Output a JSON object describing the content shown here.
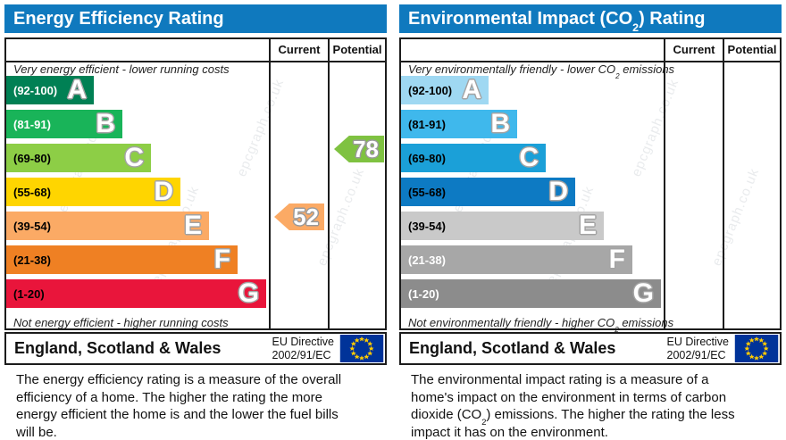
{
  "watermark": "epcgraph.co.uk",
  "flag": {
    "background": "#003399",
    "star": "#ffcc00"
  },
  "charts": [
    {
      "title": {
        "pre": "Energy Efficiency Rating",
        "sub": "",
        "post": ""
      },
      "columns": {
        "current": "Current",
        "potential": "Potential"
      },
      "top_note": {
        "pre": "Very energy efficient - lower running costs",
        "sub": "",
        "post": ""
      },
      "bottom_note": {
        "pre": "Not energy efficient - higher running costs",
        "sub": "",
        "post": ""
      },
      "bands": [
        {
          "letter": "A",
          "range": "(92-100)",
          "color": "#008054",
          "label_color": "#ffffff"
        },
        {
          "letter": "B",
          "range": "(81-91)",
          "color": "#19b459",
          "label_color": "#ffffff"
        },
        {
          "letter": "C",
          "range": "(69-80)",
          "color": "#8dce46",
          "label_color": "#000000"
        },
        {
          "letter": "D",
          "range": "(55-68)",
          "color": "#ffd500",
          "label_color": "#000000"
        },
        {
          "letter": "E",
          "range": "(39-54)",
          "color": "#fbaa65",
          "label_color": "#000000"
        },
        {
          "letter": "F",
          "range": "(21-38)",
          "color": "#ef8023",
          "label_color": "#000000"
        },
        {
          "letter": "G",
          "range": "(1-20)",
          "color": "#e9153b",
          "label_color": "#000000"
        }
      ],
      "current": {
        "value": "52",
        "band": "E",
        "color": "#fbaa65"
      },
      "potential": {
        "value": "78",
        "band": "C",
        "color": "#7fc241"
      },
      "footer": {
        "region": "England, Scotland & Wales",
        "directive_line1": "EU Directive",
        "directive_line2": "2002/91/EC"
      },
      "description": {
        "pre": "The energy efficiency rating is a measure of the overall efficiency of a home. The higher the rating the more energy efficient the home is and the lower the fuel bills will be.",
        "sub": "",
        "post": ""
      }
    },
    {
      "title": {
        "pre": "Environmental Impact (CO",
        "sub": "2",
        "post": ") Rating"
      },
      "columns": {
        "current": "Current",
        "potential": "Potential"
      },
      "top_note": {
        "pre": "Very environmentally friendly - lower CO",
        "sub": "2",
        "post": " emissions"
      },
      "bottom_note": {
        "pre": "Not environmentally friendly - higher CO",
        "sub": "2",
        "post": " emissions"
      },
      "bands": [
        {
          "letter": "A",
          "range": "(92-100)",
          "color": "#9fd8f2",
          "label_color": "#000000"
        },
        {
          "letter": "B",
          "range": "(81-91)",
          "color": "#3fb8ec",
          "label_color": "#000000"
        },
        {
          "letter": "C",
          "range": "(69-80)",
          "color": "#1ba0d8",
          "label_color": "#000000"
        },
        {
          "letter": "D",
          "range": "(55-68)",
          "color": "#0d7ac3",
          "label_color": "#000000"
        },
        {
          "letter": "E",
          "range": "(39-54)",
          "color": "#c9c9c9",
          "label_color": "#000000"
        },
        {
          "letter": "F",
          "range": "(21-38)",
          "color": "#a7a7a7",
          "label_color": "#ffffff"
        },
        {
          "letter": "G",
          "range": "(1-20)",
          "color": "#8c8c8c",
          "label_color": "#ffffff"
        }
      ],
      "current": null,
      "potential": null,
      "footer": {
        "region": "England, Scotland & Wales",
        "directive_line1": "EU Directive",
        "directive_line2": "2002/91/EC"
      },
      "description": {
        "pre": "The environmental impact rating is a measure of a home's impact on the environment in terms of carbon dioxide (CO",
        "sub": "2",
        "post": ") emissions. The higher the rating the less impact it has on the environment."
      }
    }
  ],
  "chart_data": [
    {
      "type": "bar",
      "title": "Energy Efficiency Rating",
      "categories": [
        "A (92-100)",
        "B (81-91)",
        "C (69-80)",
        "D (55-68)",
        "E (39-54)",
        "F (21-38)",
        "G (1-20)"
      ],
      "current": {
        "value": 52,
        "band": "E"
      },
      "potential": {
        "value": 78,
        "band": "C"
      },
      "top_note": "Very energy efficient - lower running costs",
      "bottom_note": "Not energy efficient - higher running costs"
    },
    {
      "type": "bar",
      "title": "Environmental Impact (CO2) Rating",
      "categories": [
        "A (92-100)",
        "B (81-91)",
        "C (69-80)",
        "D (55-68)",
        "E (39-54)",
        "F (21-38)",
        "G (1-20)"
      ],
      "current": null,
      "potential": null,
      "top_note": "Very environmentally friendly - lower CO2 emissions",
      "bottom_note": "Not environmentally friendly - higher CO2 emissions"
    }
  ]
}
